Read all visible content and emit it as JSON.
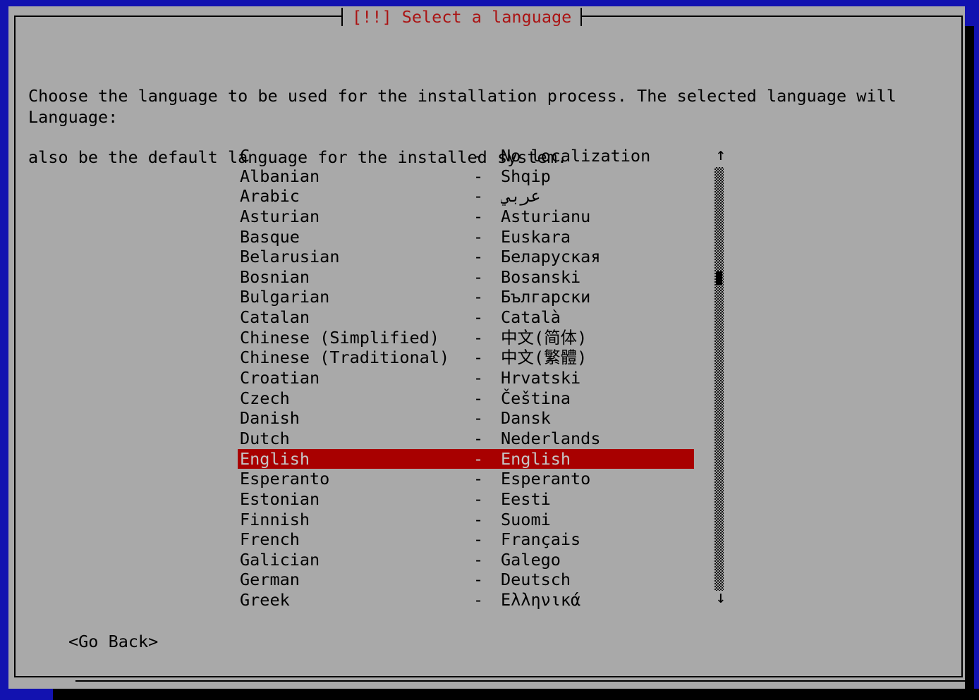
{
  "window": {
    "title": "[!!] Select a language",
    "description_lines": [
      "Choose the language to be used for the installation process. The selected language will",
      "also be the default language for the installed system."
    ],
    "field_label": "Language:",
    "go_back_label": "<Go Back>"
  },
  "colors": {
    "screen_background": "#1212b0",
    "dialog_background": "#a9a9a9",
    "title_text": "#aa1414",
    "body_text": "#000000",
    "selection_background": "#a80000",
    "selection_text": "#c6c6c6",
    "shadow": "#000000"
  },
  "language_list": {
    "selected_index": 15,
    "separator": "-",
    "items": [
      {
        "name": "C",
        "native": "No localization"
      },
      {
        "name": "Albanian",
        "native": "Shqip"
      },
      {
        "name": "Arabic",
        "native": "عربي"
      },
      {
        "name": "Asturian",
        "native": "Asturianu"
      },
      {
        "name": "Basque",
        "native": "Euskara"
      },
      {
        "name": "Belarusian",
        "native": "Беларуская"
      },
      {
        "name": "Bosnian",
        "native": "Bosanski"
      },
      {
        "name": "Bulgarian",
        "native": "Български"
      },
      {
        "name": "Catalan",
        "native": "Català"
      },
      {
        "name": "Chinese (Simplified)",
        "native": "中文(简体)"
      },
      {
        "name": "Chinese (Traditional)",
        "native": "中文(繁體)"
      },
      {
        "name": "Croatian",
        "native": "Hrvatski"
      },
      {
        "name": "Czech",
        "native": "Čeština"
      },
      {
        "name": "Danish",
        "native": "Dansk"
      },
      {
        "name": "Dutch",
        "native": "Nederlands"
      },
      {
        "name": "English",
        "native": "English"
      },
      {
        "name": "Esperanto",
        "native": "Esperanto"
      },
      {
        "name": "Estonian",
        "native": "Eesti"
      },
      {
        "name": "Finnish",
        "native": "Suomi"
      },
      {
        "name": "French",
        "native": "Français"
      },
      {
        "name": "Galician",
        "native": "Galego"
      },
      {
        "name": "German",
        "native": "Deutsch"
      },
      {
        "name": "Greek",
        "native": "Ελληνικά"
      }
    ]
  },
  "scrollbar": {
    "up_arrow": "↑",
    "down_arrow": "↓"
  }
}
